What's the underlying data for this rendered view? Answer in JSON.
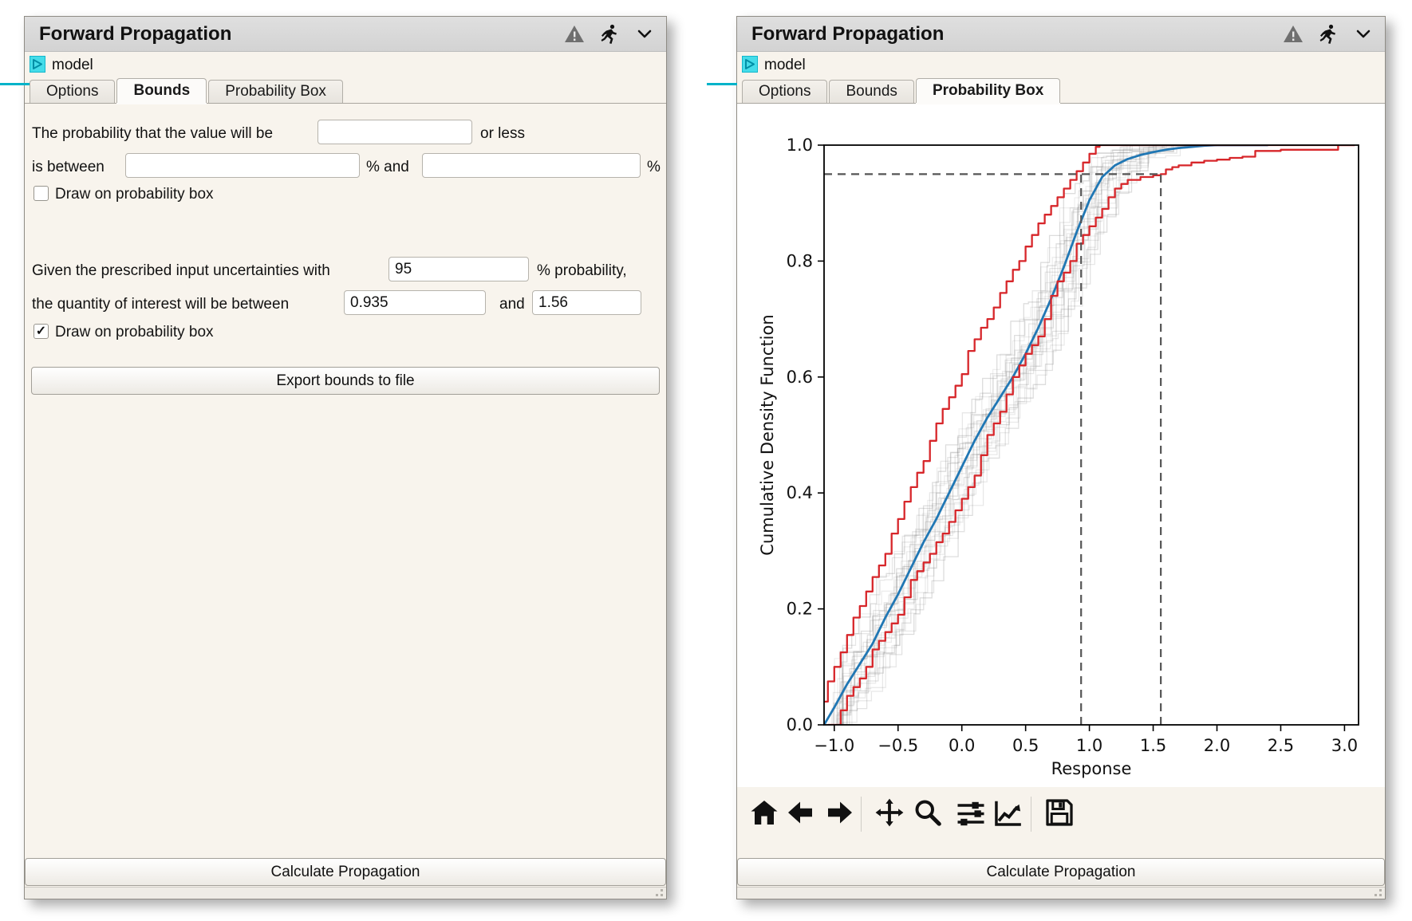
{
  "panels": {
    "left": {
      "title": "Forward Propagation",
      "model_label": "model",
      "tabs": [
        {
          "label": "Options",
          "selected": false
        },
        {
          "label": "Bounds",
          "selected": true
        },
        {
          "label": "Probability Box",
          "selected": false
        }
      ],
      "form": {
        "row1_prefix": "The probability that the value will be",
        "row1_value": "",
        "row1_suffix": "or less",
        "row2_prefix": "is between",
        "row2_value1": "",
        "row2_mid": "% and",
        "row2_value2": "",
        "row2_suffix": "%",
        "checkbox1": {
          "label": "Draw on probability box",
          "checked": false
        },
        "row4_prefix": "Given the prescribed input uncertainties with",
        "row4_value": "95",
        "row4_suffix": "% probability,",
        "row5_prefix": "the quantity of interest will be between",
        "row5_value1": "0.935",
        "row5_mid": "and",
        "row5_value2": "1.56",
        "checkbox2": {
          "label": "Draw on probability box",
          "checked": true
        },
        "export_button": "Export bounds to file"
      },
      "calculate_button": "Calculate Propagation"
    },
    "right": {
      "title": "Forward Propagation",
      "model_label": "model",
      "tabs": [
        {
          "label": "Options",
          "selected": false
        },
        {
          "label": "Bounds",
          "selected": false
        },
        {
          "label": "Probability Box",
          "selected": true
        }
      ],
      "calculate_button": "Calculate Propagation"
    }
  },
  "icons": {
    "check_glyph": "✓",
    "header": [
      "warning-triangle-icon",
      "run-icon",
      "collapse-chevron-icon"
    ],
    "toolbar": [
      "home",
      "back",
      "forward",
      "pan",
      "zoom-to-rect",
      "configure-subplots",
      "edit-axes",
      "save"
    ]
  },
  "colors": {
    "accent_cyan": "#00b3c9",
    "median_blue": "#2077b4",
    "bound_red": "#d7262a",
    "ensemble_gray": "#808080",
    "guide_gray": "#555555",
    "panel_beige": "#f7f3ec",
    "header_gray": "#d9d9d9"
  },
  "chart_data": {
    "type": "line",
    "title": "",
    "xlabel": "Response",
    "ylabel": "Cumulative Density Function",
    "xlim": [
      -1.08,
      3.11
    ],
    "ylim": [
      0,
      1
    ],
    "x_ticks": [
      -1.0,
      -0.5,
      0.0,
      0.5,
      1.0,
      1.5,
      2.0,
      2.5,
      3.0
    ],
    "y_ticks": [
      0.0,
      0.2,
      0.4,
      0.6,
      0.8,
      1.0
    ],
    "grid": false,
    "legend": null,
    "series": [
      {
        "name": "median-cdf",
        "color": "#2077b4",
        "width": 2.8,
        "style": "line",
        "points": [
          [
            -1.08,
            0
          ],
          [
            -1.0,
            0.03
          ],
          [
            -0.9,
            0.07
          ],
          [
            -0.8,
            0.105
          ],
          [
            -0.7,
            0.14
          ],
          [
            -0.6,
            0.185
          ],
          [
            -0.5,
            0.225
          ],
          [
            -0.4,
            0.27
          ],
          [
            -0.3,
            0.315
          ],
          [
            -0.2,
            0.355
          ],
          [
            -0.1,
            0.4
          ],
          [
            0.0,
            0.445
          ],
          [
            0.1,
            0.49
          ],
          [
            0.2,
            0.53
          ],
          [
            0.3,
            0.565
          ],
          [
            0.4,
            0.6
          ],
          [
            0.5,
            0.64
          ],
          [
            0.6,
            0.685
          ],
          [
            0.7,
            0.735
          ],
          [
            0.8,
            0.79
          ],
          [
            0.9,
            0.85
          ],
          [
            1.0,
            0.905
          ],
          [
            1.1,
            0.945
          ],
          [
            1.2,
            0.965
          ],
          [
            1.3,
            0.976
          ],
          [
            1.4,
            0.983
          ],
          [
            1.5,
            0.988
          ],
          [
            1.6,
            0.992
          ],
          [
            1.7,
            0.995
          ],
          [
            1.8,
            0.997
          ],
          [
            1.9,
            0.999
          ],
          [
            2.0,
            1.0
          ],
          [
            2.4,
            1.0
          ]
        ]
      },
      {
        "name": "upper-bound-cdf",
        "color": "#d7262a",
        "width": 2.3,
        "style": "step",
        "points": [
          [
            -1.12,
            0.0
          ],
          [
            -1.1,
            0.04
          ],
          [
            -1.05,
            0.075
          ],
          [
            -1.0,
            0.1
          ],
          [
            -0.95,
            0.125
          ],
          [
            -0.9,
            0.155
          ],
          [
            -0.85,
            0.185
          ],
          [
            -0.8,
            0.205
          ],
          [
            -0.75,
            0.23
          ],
          [
            -0.7,
            0.255
          ],
          [
            -0.65,
            0.275
          ],
          [
            -0.6,
            0.295
          ],
          [
            -0.55,
            0.33
          ],
          [
            -0.5,
            0.355
          ],
          [
            -0.45,
            0.385
          ],
          [
            -0.4,
            0.41
          ],
          [
            -0.35,
            0.435
          ],
          [
            -0.3,
            0.455
          ],
          [
            -0.25,
            0.49
          ],
          [
            -0.2,
            0.52
          ],
          [
            -0.15,
            0.545
          ],
          [
            -0.1,
            0.565
          ],
          [
            -0.05,
            0.585
          ],
          [
            0.0,
            0.605
          ],
          [
            0.05,
            0.645
          ],
          [
            0.1,
            0.665
          ],
          [
            0.15,
            0.685
          ],
          [
            0.2,
            0.7
          ],
          [
            0.25,
            0.72
          ],
          [
            0.3,
            0.745
          ],
          [
            0.35,
            0.765
          ],
          [
            0.4,
            0.785
          ],
          [
            0.45,
            0.8
          ],
          [
            0.5,
            0.825
          ],
          [
            0.55,
            0.845
          ],
          [
            0.6,
            0.865
          ],
          [
            0.65,
            0.88
          ],
          [
            0.7,
            0.895
          ],
          [
            0.75,
            0.91
          ],
          [
            0.8,
            0.925
          ],
          [
            0.85,
            0.94
          ],
          [
            0.9,
            0.955
          ],
          [
            0.95,
            0.97
          ],
          [
            1.0,
            0.985
          ],
          [
            1.05,
            0.997
          ],
          [
            1.08,
            1.0
          ],
          [
            3.08,
            1.0
          ]
        ]
      },
      {
        "name": "lower-bound-cdf",
        "color": "#d7262a",
        "width": 2.3,
        "style": "step",
        "points": [
          [
            -1.05,
            0.0
          ],
          [
            -0.95,
            0.025
          ],
          [
            -0.9,
            0.05
          ],
          [
            -0.85,
            0.065
          ],
          [
            -0.8,
            0.08
          ],
          [
            -0.75,
            0.1
          ],
          [
            -0.7,
            0.13
          ],
          [
            -0.65,
            0.145
          ],
          [
            -0.6,
            0.16
          ],
          [
            -0.55,
            0.175
          ],
          [
            -0.5,
            0.19
          ],
          [
            -0.45,
            0.22
          ],
          [
            -0.4,
            0.25
          ],
          [
            -0.35,
            0.265
          ],
          [
            -0.3,
            0.28
          ],
          [
            -0.25,
            0.295
          ],
          [
            -0.2,
            0.315
          ],
          [
            -0.15,
            0.33
          ],
          [
            -0.1,
            0.35
          ],
          [
            -0.05,
            0.37
          ],
          [
            0.0,
            0.39
          ],
          [
            0.05,
            0.41
          ],
          [
            0.1,
            0.43
          ],
          [
            0.15,
            0.465
          ],
          [
            0.2,
            0.5
          ],
          [
            0.25,
            0.52
          ],
          [
            0.3,
            0.54
          ],
          [
            0.35,
            0.57
          ],
          [
            0.4,
            0.6
          ],
          [
            0.45,
            0.62
          ],
          [
            0.5,
            0.64
          ],
          [
            0.55,
            0.655
          ],
          [
            0.6,
            0.67
          ],
          [
            0.65,
            0.7
          ],
          [
            0.7,
            0.74
          ],
          [
            0.75,
            0.765
          ],
          [
            0.8,
            0.78
          ],
          [
            0.85,
            0.8
          ],
          [
            0.9,
            0.83
          ],
          [
            0.95,
            0.845
          ],
          [
            1.0,
            0.86
          ],
          [
            1.05,
            0.875
          ],
          [
            1.1,
            0.89
          ],
          [
            1.15,
            0.91
          ],
          [
            1.2,
            0.925
          ],
          [
            1.25,
            0.933
          ],
          [
            1.3,
            0.94
          ],
          [
            1.4,
            0.945
          ],
          [
            1.5,
            0.948
          ],
          [
            1.56,
            0.95
          ],
          [
            1.6,
            0.958
          ],
          [
            1.65,
            0.962
          ],
          [
            1.7,
            0.965
          ],
          [
            1.8,
            0.97
          ],
          [
            1.9,
            0.973
          ],
          [
            2.0,
            0.975
          ],
          [
            2.1,
            0.978
          ],
          [
            2.2,
            0.98
          ],
          [
            2.3,
            0.99
          ],
          [
            2.5,
            0.992
          ],
          [
            2.9,
            0.992
          ],
          [
            2.95,
            1.0
          ],
          [
            3.08,
            1.0
          ]
        ]
      }
    ],
    "ensemble": {
      "name": "sample-cdfs",
      "count": 26,
      "color": "#808080",
      "base_opacity": 0.1,
      "opacity_jitter": 0.18,
      "width": 1.3,
      "seed": 7,
      "x_spread": 0.42
    },
    "guides": {
      "color": "#555555",
      "dash": "10 7",
      "width": 2.2,
      "h_y": 0.95,
      "v_x": [
        0.935,
        1.56
      ]
    }
  }
}
